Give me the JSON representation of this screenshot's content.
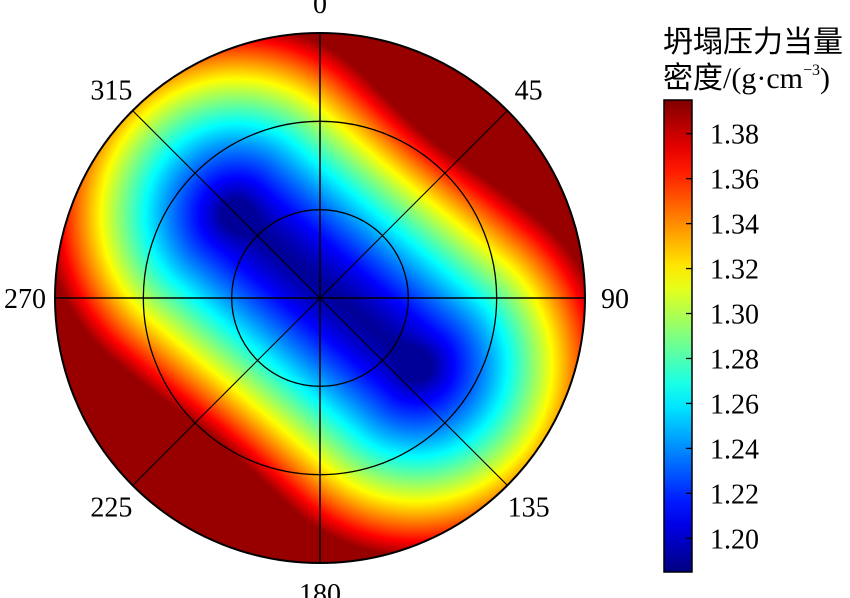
{
  "chart_data": {
    "type": "heatmap",
    "subtype": "polar",
    "title": "",
    "colorbar": {
      "title_line1": "坍塌压力当量",
      "title_line2_prefix": "密度/(g·cm",
      "title_line2_sup": "−3",
      "title_line2_suffix": ")",
      "range": [
        1.185,
        1.395
      ],
      "ticks": [
        "1.38",
        "1.36",
        "1.34",
        "1.32",
        "1.30",
        "1.28",
        "1.26",
        "1.24",
        "1.22",
        "1.20"
      ],
      "tick_values": [
        1.38,
        1.36,
        1.34,
        1.32,
        1.3,
        1.28,
        1.26,
        1.24,
        1.22,
        1.2
      ],
      "colormap": "jet",
      "placement": "right"
    },
    "angular_axis": {
      "unit": "degree",
      "direction": "clockwise",
      "zero_at": "top",
      "tick_labels": [
        "0",
        "45",
        "90",
        "135",
        "180",
        "225",
        "270",
        "315"
      ],
      "tick_values": [
        0,
        45,
        90,
        135,
        180,
        225,
        270,
        315
      ]
    },
    "radial_axis": {
      "range": [
        0,
        90
      ],
      "circles": [
        30,
        60
      ],
      "tick_labels_shown": false
    },
    "field": {
      "min_value": 1.19,
      "max_value": 1.39,
      "min_locations": [
        {
          "azimuth": 315,
          "radius": 40
        },
        {
          "azimuth": 125,
          "radius": 40
        }
      ],
      "max_locations": [
        {
          "azimuth": 35,
          "radius": 85
        },
        {
          "azimuth": 215,
          "radius": 85
        }
      ]
    }
  }
}
